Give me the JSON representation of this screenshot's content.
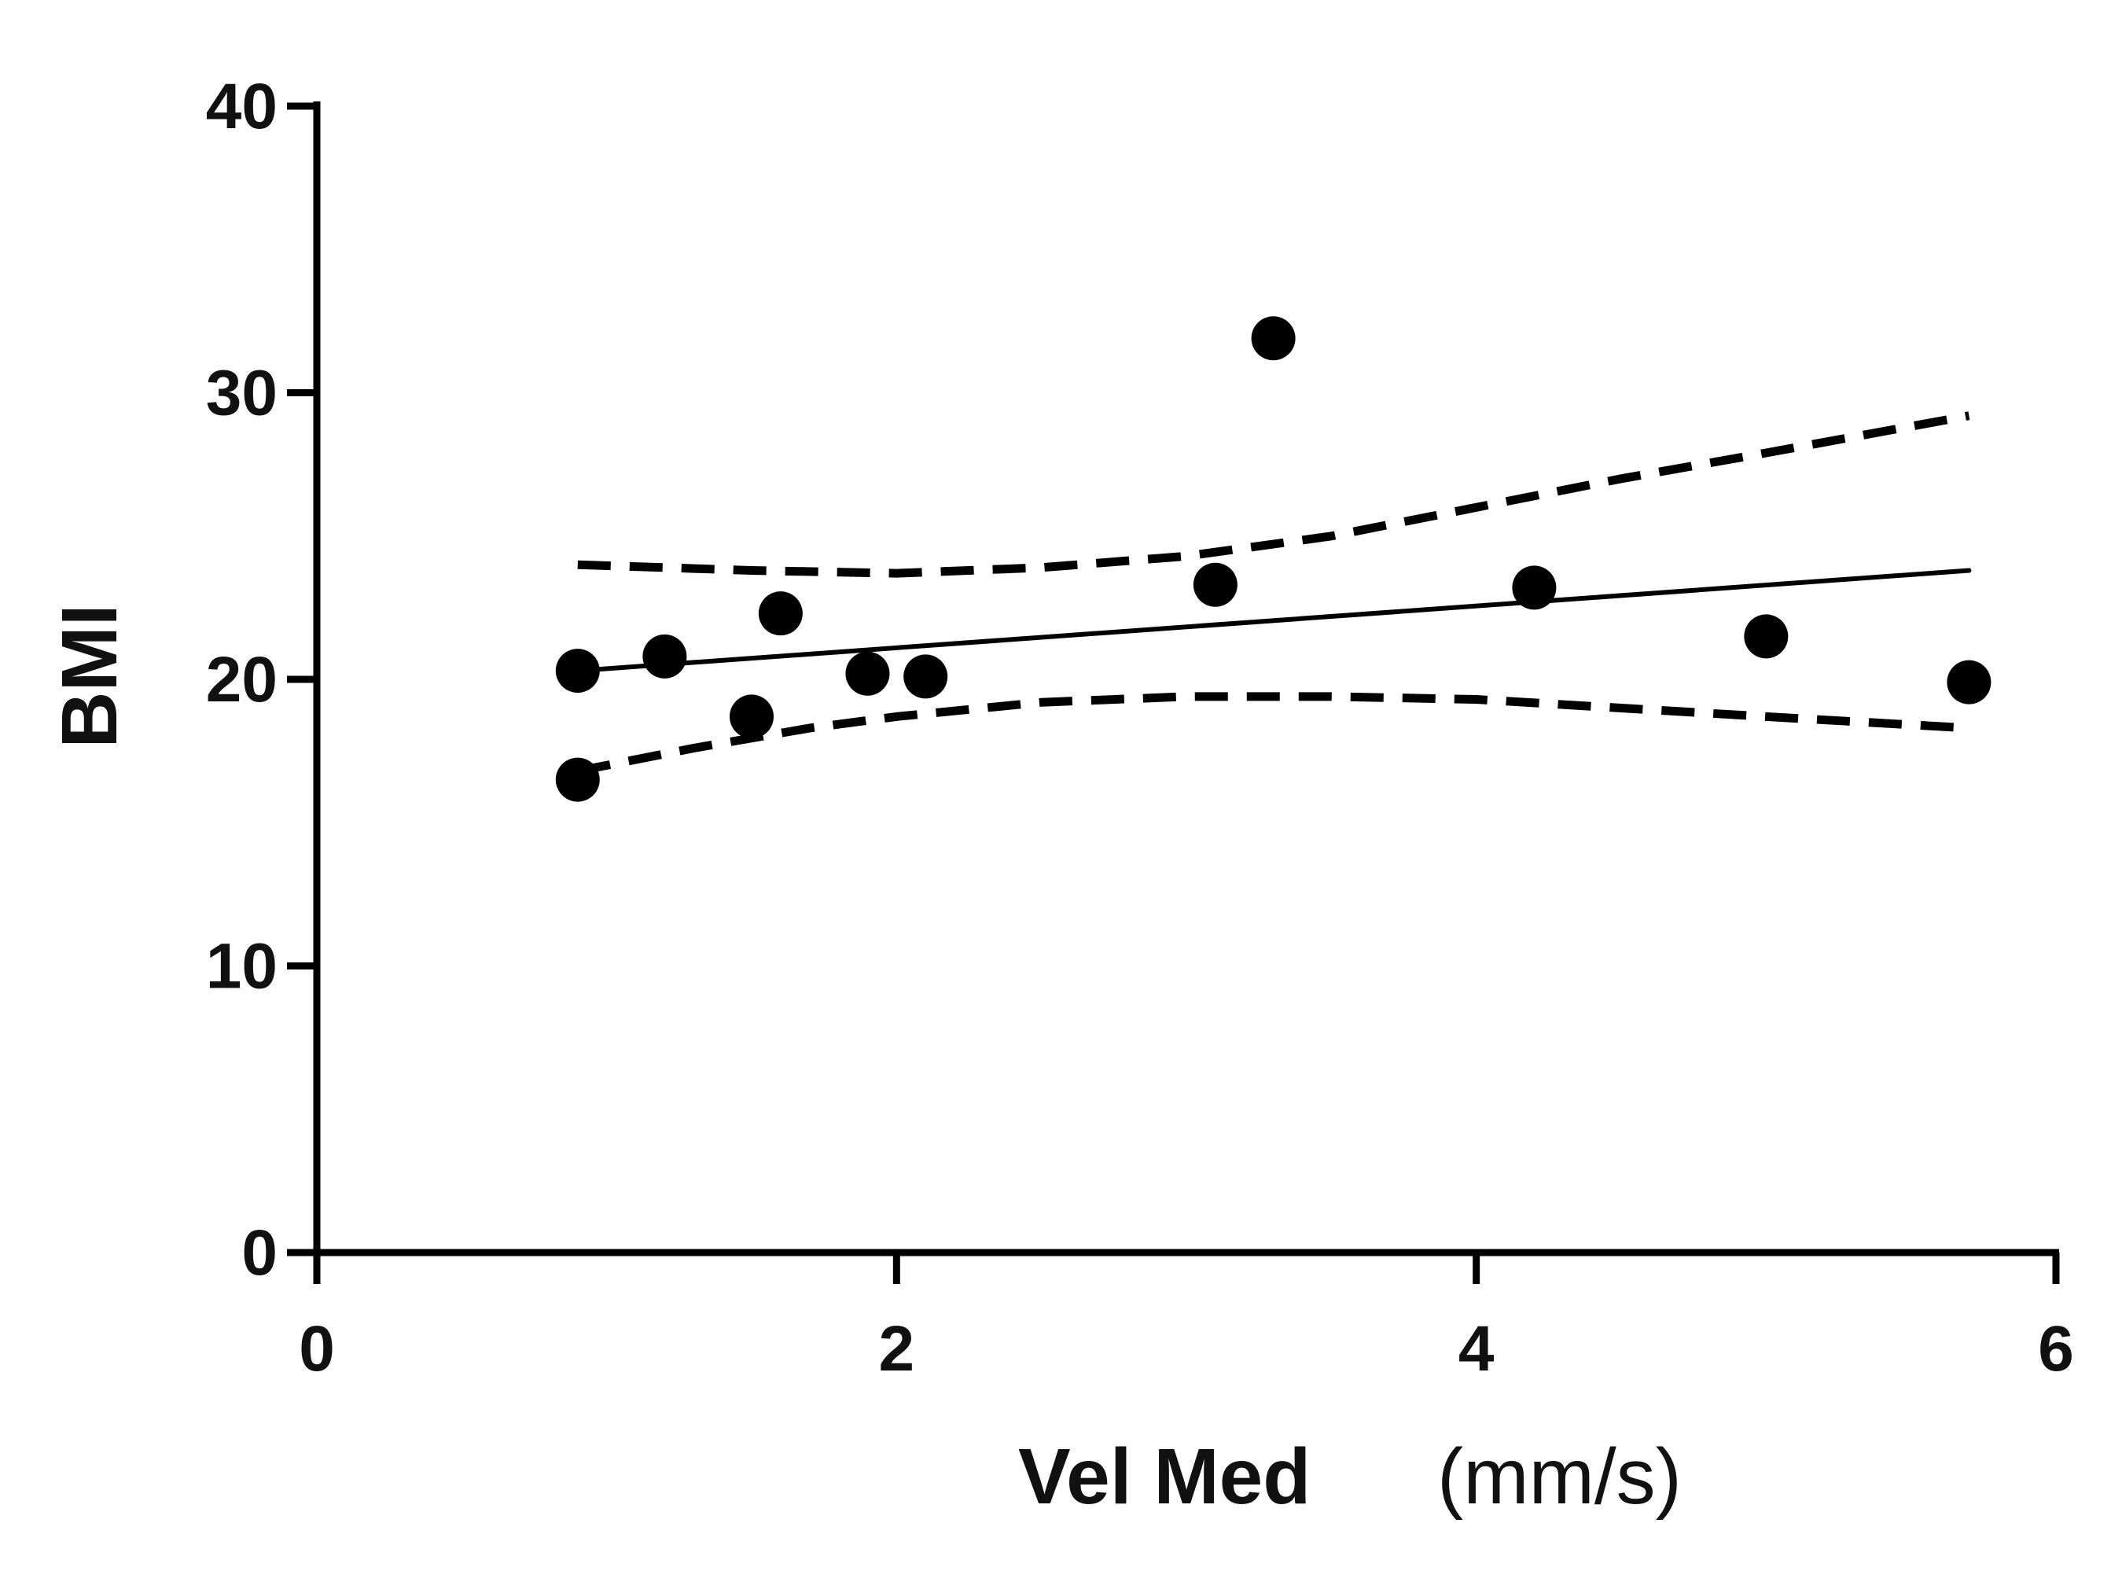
{
  "chart_data": {
    "type": "scatter",
    "title": "",
    "xlabel": "Vel Med",
    "xlabel_unit": "(mm/s)",
    "ylabel": "BMI",
    "xlim": [
      0,
      6
    ],
    "ylim": [
      0,
      40
    ],
    "xticks": [
      "0",
      "2",
      "4",
      "6"
    ],
    "yticks": [
      "0",
      "10",
      "20",
      "30",
      "40"
    ],
    "grid": false,
    "series": [
      {
        "name": "data",
        "type": "scatter",
        "points": [
          {
            "x": 0.9,
            "y": 20.3
          },
          {
            "x": 0.9,
            "y": 16.5
          },
          {
            "x": 1.2,
            "y": 20.8
          },
          {
            "x": 1.5,
            "y": 18.7
          },
          {
            "x": 1.6,
            "y": 22.3
          },
          {
            "x": 1.9,
            "y": 20.2
          },
          {
            "x": 2.1,
            "y": 20.1
          },
          {
            "x": 3.1,
            "y": 23.3
          },
          {
            "x": 3.3,
            "y": 31.9
          },
          {
            "x": 4.2,
            "y": 23.2
          },
          {
            "x": 5.0,
            "y": 21.5
          },
          {
            "x": 5.7,
            "y": 19.9
          }
        ]
      },
      {
        "name": "regression",
        "type": "line",
        "style": "solid",
        "points": [
          {
            "x": 0.9,
            "y": 20.3
          },
          {
            "x": 5.7,
            "y": 23.8
          }
        ]
      },
      {
        "name": "upper-95-confidence",
        "type": "line",
        "style": "dashed",
        "points": [
          {
            "x": 0.9,
            "y": 24.0
          },
          {
            "x": 1.5,
            "y": 23.8
          },
          {
            "x": 2.0,
            "y": 23.7
          },
          {
            "x": 2.5,
            "y": 23.9
          },
          {
            "x": 3.0,
            "y": 24.3
          },
          {
            "x": 3.5,
            "y": 25.0
          },
          {
            "x": 4.0,
            "y": 26.0
          },
          {
            "x": 4.5,
            "y": 27.0
          },
          {
            "x": 5.0,
            "y": 27.9
          },
          {
            "x": 5.7,
            "y": 29.2
          }
        ]
      },
      {
        "name": "lower-95-confidence",
        "type": "line",
        "style": "dashed",
        "points": [
          {
            "x": 0.9,
            "y": 16.8
          },
          {
            "x": 1.3,
            "y": 17.6
          },
          {
            "x": 1.7,
            "y": 18.3
          },
          {
            "x": 2.0,
            "y": 18.7
          },
          {
            "x": 2.5,
            "y": 19.2
          },
          {
            "x": 3.0,
            "y": 19.4
          },
          {
            "x": 3.5,
            "y": 19.4
          },
          {
            "x": 4.0,
            "y": 19.3
          },
          {
            "x": 4.5,
            "y": 19.0
          },
          {
            "x": 5.0,
            "y": 18.7
          },
          {
            "x": 5.7,
            "y": 18.3
          }
        ]
      }
    ],
    "colors": {
      "marker": "#000000",
      "line": "#000000",
      "axis": "#000000"
    }
  }
}
